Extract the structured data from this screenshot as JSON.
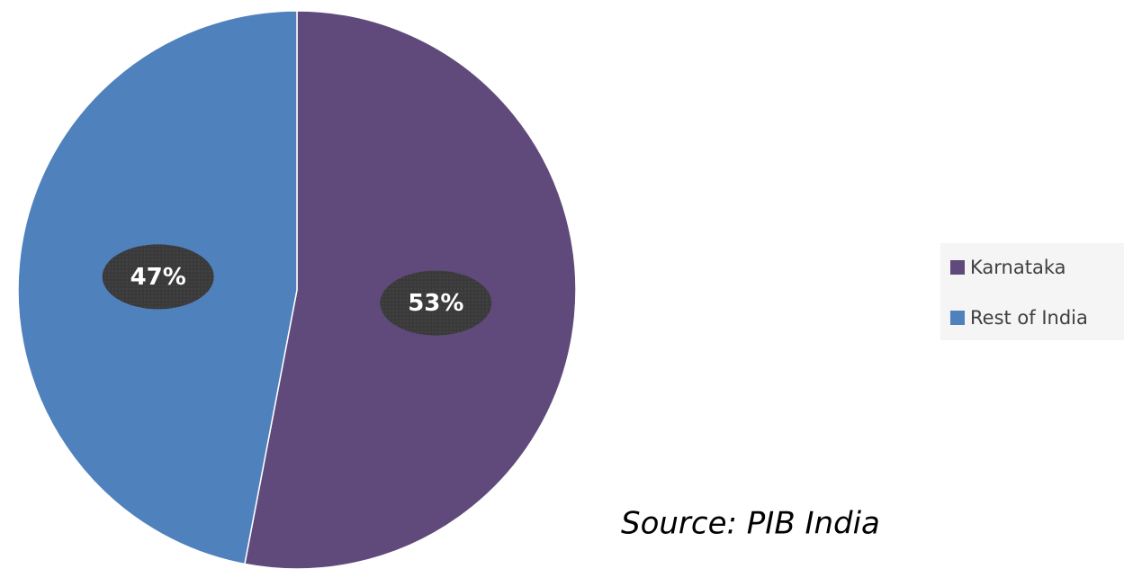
{
  "chart_data": {
    "type": "pie",
    "categories": [
      "Karnataka",
      "Rest of India"
    ],
    "values": [
      53,
      47
    ],
    "value_labels": [
      "53%",
      "47%"
    ],
    "colors": [
      "#5f4a7b",
      "#4f81bd"
    ],
    "legend": "right",
    "annotation": "Source: PIB India"
  }
}
